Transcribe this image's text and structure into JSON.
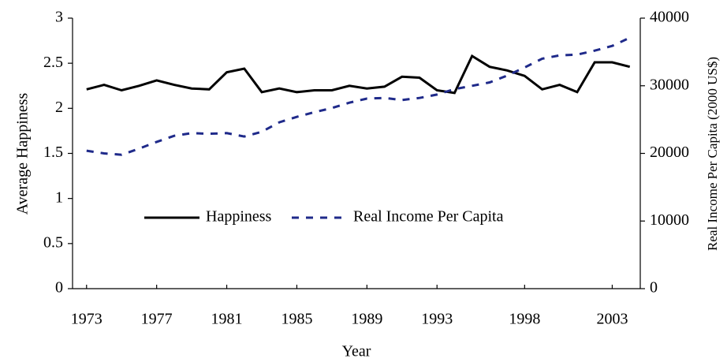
{
  "chart_data": {
    "type": "line",
    "x_label": "Year",
    "y_label": "Average Happiness",
    "y2_label": "Real Income Per Capita (2000 US$)",
    "x": [
      1973,
      1974,
      1975,
      1976,
      1977,
      1978,
      1979,
      1980,
      1981,
      1982,
      1983,
      1984,
      1985,
      1986,
      1987,
      1988,
      1989,
      1990,
      1991,
      1992,
      1993,
      1994,
      1995,
      1996,
      1997,
      1998,
      1999,
      2000,
      2001,
      2002,
      2003,
      2004
    ],
    "series": [
      {
        "name": "Happiness",
        "color": "#000000",
        "dash": false,
        "values": [
          2.21,
          2.26,
          2.2,
          2.25,
          2.31,
          2.26,
          2.22,
          2.21,
          2.4,
          2.44,
          2.18,
          2.22,
          2.18,
          2.2,
          2.2,
          2.25,
          2.22,
          2.24,
          2.35,
          2.34,
          2.2,
          2.17,
          2.58,
          2.46,
          2.42,
          2.36,
          2.21,
          2.26,
          2.18,
          2.51,
          2.51,
          2.46
        ]
      },
      {
        "name": "Real Income Per Capita",
        "color": "#1f2a8a",
        "dash": true,
        "axis": "y2",
        "values": [
          20400,
          20000,
          19800,
          20700,
          21700,
          22600,
          23000,
          22900,
          23000,
          22500,
          23200,
          24600,
          25400,
          26100,
          26700,
          27500,
          28100,
          28200,
          27900,
          28200,
          28700,
          29500,
          30000,
          30500,
          31500,
          32700,
          34000,
          34500,
          34600,
          35200,
          35900,
          37100
        ]
      }
    ],
    "xlim": [
      1972.2,
      2004.6
    ],
    "xticks": [
      1973,
      1977,
      1981,
      1985,
      1989,
      1993,
      1998,
      2003
    ],
    "ylim": [
      0,
      3
    ],
    "yticks": [
      0,
      0.5,
      1,
      1.5,
      2,
      2.5,
      3
    ],
    "y2lim": [
      0,
      40000
    ],
    "y2ticks": [
      0,
      10000,
      20000,
      30000,
      40000
    ],
    "legend": "center"
  }
}
